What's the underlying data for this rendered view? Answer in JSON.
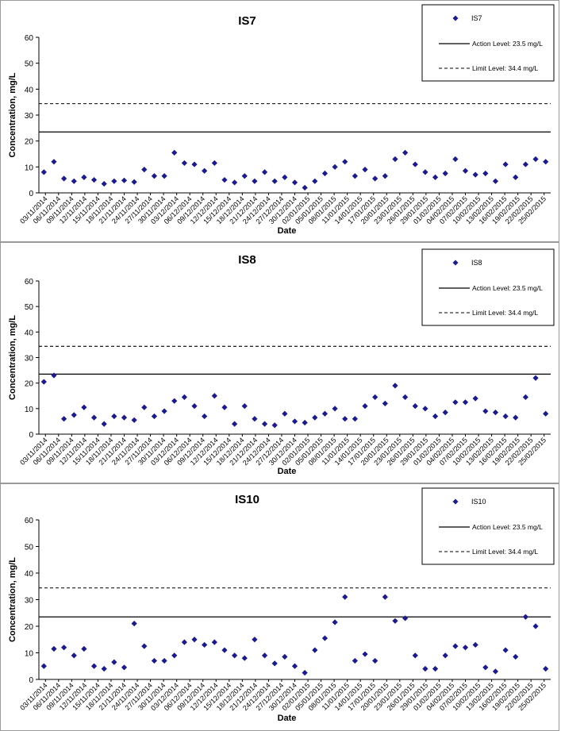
{
  "chart_data": [
    {
      "type": "scatter",
      "title": "IS7",
      "xlabel": "Date",
      "ylabel": "Concentration, mg/L",
      "ylim": [
        0,
        60
      ],
      "yticks": [
        0,
        10,
        20,
        30,
        40,
        50,
        60
      ],
      "grid": false,
      "legend_position": "top-right",
      "series_name": "IS7",
      "marker_color": "#1b1b8f",
      "action_level": {
        "value": 23.5,
        "label": "Action Level: 23.5 mg/L"
      },
      "limit_level": {
        "value": 34.4,
        "label": "Limit Level: 34.4 mg/L"
      },
      "x_ticks": [
        "03/11/2014",
        "06/11/2014",
        "09/11/2014",
        "12/11/2014",
        "15/11/2014",
        "18/11/2014",
        "21/11/2014",
        "24/11/2014",
        "27/11/2014",
        "30/11/2014",
        "03/12/2014",
        "06/12/2014",
        "09/12/2014",
        "12/12/2014",
        "15/12/2014",
        "18/12/2014",
        "21/12/2014",
        "24/12/2014",
        "27/12/2014",
        "30/12/2014",
        "02/01/2015",
        "05/01/2015",
        "08/01/2015",
        "11/01/2015",
        "14/01/2015",
        "17/01/2015",
        "20/01/2015",
        "23/01/2015",
        "26/01/2015",
        "29/01/2015",
        "01/02/2015",
        "04/02/2015",
        "07/02/2015",
        "10/02/2015",
        "13/02/2015",
        "16/02/2015",
        "19/02/2015",
        "22/02/2015",
        "25/02/2015"
      ],
      "values": [
        8,
        12,
        5.5,
        4.5,
        6,
        5,
        3.5,
        4.5,
        4.8,
        4.2,
        9,
        6.5,
        6.5,
        15.5,
        11.5,
        11,
        8.5,
        11.5,
        5,
        4,
        6.5,
        4.5,
        8,
        4.5,
        6,
        4,
        2,
        4.5,
        7.5,
        10,
        12,
        6.5,
        9,
        5.5,
        6.5,
        13,
        15.5,
        11,
        8,
        6,
        7.5,
        13,
        8.5,
        7,
        7.5,
        4.5,
        11,
        6,
        11,
        13,
        12
      ]
    },
    {
      "type": "scatter",
      "title": "IS8",
      "xlabel": "Date",
      "ylabel": "Concentration, mg/L",
      "ylim": [
        0,
        60
      ],
      "yticks": [
        0,
        10,
        20,
        30,
        40,
        50,
        60
      ],
      "grid": false,
      "legend_position": "top-right",
      "series_name": "IS8",
      "marker_color": "#1b1b8f",
      "action_level": {
        "value": 23.5,
        "label": "Action Level: 23.5 mg/L"
      },
      "limit_level": {
        "value": 34.4,
        "label": "Limit Level: 34.4 mg/L"
      },
      "x_ticks": [
        "03/11/2014",
        "06/11/2014",
        "09/11/2014",
        "12/11/2014",
        "15/11/2014",
        "18/11/2014",
        "21/11/2014",
        "24/11/2014",
        "27/11/2014",
        "30/11/2014",
        "03/12/2014",
        "06/12/2014",
        "09/12/2014",
        "12/12/2014",
        "15/12/2014",
        "18/12/2014",
        "21/12/2014",
        "24/12/2014",
        "27/12/2014",
        "30/12/2014",
        "02/01/2015",
        "05/01/2015",
        "08/01/2015",
        "11/01/2015",
        "14/01/2015",
        "17/01/2015",
        "20/01/2015",
        "23/01/2015",
        "26/01/2015",
        "29/01/2015",
        "01/02/2015",
        "04/02/2015",
        "07/02/2015",
        "10/02/2015",
        "13/02/2015",
        "16/02/2015",
        "19/02/2015",
        "22/02/2015",
        "25/02/2015"
      ],
      "values": [
        20.5,
        23,
        6,
        7.5,
        10.5,
        6.5,
        4,
        7,
        6.5,
        5.5,
        10.5,
        7,
        9,
        13,
        14.5,
        11,
        7,
        15,
        10.5,
        4,
        11,
        6,
        4,
        3.5,
        8,
        5,
        4.5,
        6.5,
        8,
        10,
        6,
        6,
        11,
        14.5,
        12,
        19,
        14.5,
        11,
        10,
        7,
        8.5,
        12.5,
        12.5,
        14,
        9,
        8.5,
        7,
        6.5,
        14.5,
        22,
        8
      ]
    },
    {
      "type": "scatter",
      "title": "IS10",
      "xlabel": "Date",
      "ylabel": "Concentration, mg/L",
      "ylim": [
        0,
        60
      ],
      "yticks": [
        0,
        10,
        20,
        30,
        40,
        50,
        60
      ],
      "grid": false,
      "legend_position": "top-right",
      "series_name": "IS10",
      "marker_color": "#1b1b8f",
      "action_level": {
        "value": 23.5,
        "label": "Action Level: 23.5 mg/L"
      },
      "limit_level": {
        "value": 34.4,
        "label": "Limit Level: 34.4 mg/L"
      },
      "x_ticks": [
        "03/11/2014",
        "06/11/2014",
        "09/11/2014",
        "12/11/2014",
        "15/11/2014",
        "18/11/2014",
        "21/11/2014",
        "24/11/2014",
        "27/11/2014",
        "30/11/2014",
        "03/12/2014",
        "06/12/2014",
        "09/12/2014",
        "12/12/2014",
        "15/12/2014",
        "18/12/2014",
        "21/12/2014",
        "24/12/2014",
        "27/12/2014",
        "30/12/2014",
        "02/01/2015",
        "05/01/2015",
        "08/01/2015",
        "11/01/2015",
        "14/01/2015",
        "17/01/2015",
        "20/01/2015",
        "23/01/2015",
        "26/01/2015",
        "29/01/2015",
        "01/02/2015",
        "04/02/2015",
        "07/02/2015",
        "10/02/2015",
        "13/02/2015",
        "16/02/2015",
        "19/02/2015",
        "22/02/2015",
        "25/02/2015"
      ],
      "values": [
        5,
        11.5,
        12,
        9,
        11.5,
        5,
        4,
        6.5,
        4.5,
        21,
        12.5,
        7,
        7,
        9,
        14,
        15,
        13,
        14,
        11,
        9,
        8,
        15,
        9,
        6,
        8.5,
        5,
        2.5,
        11,
        15.5,
        21.5,
        31,
        7,
        9.5,
        7,
        31,
        22,
        23,
        9,
        4,
        4,
        9,
        12.5,
        12,
        13,
        4.5,
        3,
        11,
        8.5,
        23.5,
        20,
        4
      ]
    }
  ]
}
